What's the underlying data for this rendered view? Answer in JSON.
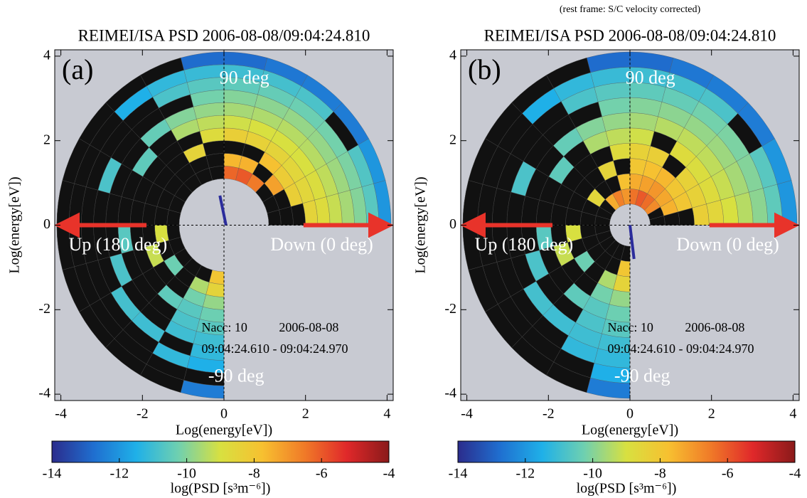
{
  "chart_data": [
    {
      "type": "polar-heatmap",
      "title": "REIMEI/ISA PSD 2006-08-08/09:04:24.810",
      "panel_label": "(a)",
      "xlabel": "Log(energy[eV])",
      "ylabel": "Log(energy[eV])",
      "xlim": [
        -4.15,
        4.15
      ],
      "ylim": [
        -4.15,
        4.15
      ],
      "xticks": [
        -4,
        -2,
        0,
        2,
        4
      ],
      "yticks": [
        -4,
        -2,
        0,
        2,
        4
      ],
      "angle_edges": [
        0,
        15,
        30,
        45,
        60,
        75,
        90,
        105,
        120,
        135,
        150,
        165,
        180,
        195,
        210,
        225,
        240,
        255,
        270
      ],
      "radius_edges": [
        1.1,
        1.4,
        1.7,
        2.0,
        2.3,
        2.6,
        2.9,
        3.2,
        3.5,
        3.8,
        4.1
      ],
      "values": [
        [
          null,
          null,
          null,
          -8.5,
          -8.8,
          -9.2,
          -9.6,
          -10,
          -10.6,
          -12
        ],
        [
          null,
          null,
          -8.3,
          -8.6,
          -8.9,
          -9.3,
          -9.7,
          -10.1,
          -10.7,
          -12
        ],
        [
          null,
          -7.2,
          -8.2,
          -8.6,
          -9,
          -9.4,
          -9.8,
          -10.2,
          null,
          -12.5
        ],
        [
          -6.5,
          null,
          -7.8,
          -8.5,
          -9,
          -9.4,
          -9.8,
          -10.3,
          -10.8,
          -12.5
        ],
        [
          -6,
          -7.5,
          null,
          -8.4,
          -9,
          -9.5,
          -9.9,
          -10.4,
          -10.9,
          -12.6
        ],
        [
          -6.2,
          -7.6,
          null,
          -8.3,
          -9.1,
          -9.6,
          -10,
          -10.5,
          -11,
          -12.8
        ],
        [
          null,
          null,
          null,
          -8.8,
          -9.3,
          -9.8,
          -10.2,
          -10.6,
          -11.1,
          -12.8
        ],
        [
          null,
          null,
          -8.5,
          null,
          -9.5,
          -10,
          null,
          -10.8,
          -11.2,
          null
        ],
        [
          null,
          null,
          null,
          null,
          null,
          -10.4,
          null,
          null,
          -11.5,
          null
        ],
        [
          null,
          null,
          null,
          null,
          -10.5,
          null,
          null,
          null,
          null,
          null
        ],
        [
          null,
          null,
          null,
          null,
          null,
          null,
          -10.8,
          null,
          null,
          null
        ],
        [
          null,
          null,
          null,
          null,
          null,
          null,
          null,
          null,
          null,
          null
        ],
        [
          null,
          -9,
          null,
          null,
          -10.6,
          null,
          null,
          null,
          null,
          null
        ],
        [
          null,
          null,
          -9.2,
          null,
          null,
          -10.8,
          null,
          null,
          null,
          null
        ],
        [
          null,
          -10.3,
          null,
          null,
          null,
          null,
          -10.9,
          null,
          null,
          null
        ],
        [
          null,
          null,
          null,
          -10.5,
          null,
          null,
          -11,
          null,
          null,
          null
        ],
        [
          null,
          -9.5,
          -10.2,
          -10.6,
          -10.8,
          -11,
          null,
          -11.2,
          null,
          null
        ],
        [
          -8,
          -8.5,
          -9.8,
          -10.3,
          -10.6,
          -11,
          -11.2,
          -11.5,
          null,
          -12.5
        ]
      ],
      "clim": [
        -14,
        -4
      ],
      "cticks": [
        -14,
        -12,
        -10,
        -8,
        -6,
        -4
      ],
      "colorbar_label": "log(PSD [s³m⁻⁶])",
      "colormap": [
        "#2b2c8c",
        "#1f6fd0",
        "#1fb0e8",
        "#6fd0b0",
        "#d8e040",
        "#f7c030",
        "#f07a28",
        "#e0282a",
        "#8a1a1a"
      ],
      "annotations": {
        "top": "90 deg",
        "bottom": "-90 deg",
        "left": "Up (180 deg)",
        "right": "Down (0 deg)",
        "nacc": "Nacc: 10",
        "date": "2006-08-08",
        "interval": "09:04:24.610 - 09:04:24.970"
      }
    },
    {
      "type": "polar-heatmap",
      "title": "REIMEI/ISA PSD 2006-08-08/09:04:24.810",
      "subtitle": "(rest frame: S/C velocity corrected)",
      "panel_label": "(b)",
      "xlabel": "Log(energy[eV])",
      "ylabel": "Log(energy[eV])",
      "xlim": [
        -4.15,
        4.15
      ],
      "ylim": [
        -4.15,
        4.15
      ],
      "xticks": [
        -4,
        -2,
        0,
        2,
        4
      ],
      "yticks": [
        -4,
        -2,
        0,
        2,
        4
      ],
      "angle_edges": [
        0,
        15,
        30,
        45,
        60,
        75,
        90,
        105,
        120,
        135,
        150,
        165,
        180,
        195,
        210,
        225,
        240,
        255,
        270
      ],
      "radius_edges": [
        0.5,
        0.86,
        1.22,
        1.58,
        1.94,
        2.3,
        2.66,
        3.02,
        3.38,
        3.74,
        4.1
      ],
      "values": [
        [
          null,
          null,
          null,
          -8.3,
          -8.6,
          -9,
          -9.4,
          -9.9,
          -10.5,
          -12
        ],
        [
          null,
          -7.5,
          -8,
          -8.4,
          -8.8,
          -9.2,
          -9.6,
          -10,
          -10.6,
          -12
        ],
        [
          -6.8,
          -7.3,
          -8,
          -8.4,
          -8.9,
          -9.3,
          -9.7,
          -10.1,
          null,
          -12.5
        ],
        [
          -6.3,
          -7,
          -7.6,
          null,
          -8.8,
          -9.3,
          -9.8,
          -10.2,
          -10.8,
          -12.5
        ],
        [
          -6,
          -7.2,
          -7.8,
          -8.3,
          null,
          -9.4,
          -9.9,
          -10.4,
          -10.9,
          -12.6
        ],
        [
          -6.4,
          -7.4,
          -8,
          -8.4,
          -9.1,
          -9.6,
          -10,
          -10.5,
          -11,
          -12.8
        ],
        [
          -7,
          -7.8,
          null,
          -8.8,
          -9.3,
          -9.8,
          -10.2,
          -10.6,
          -11.1,
          -12.8
        ],
        [
          -6.6,
          null,
          -8.5,
          null,
          -9.5,
          -10,
          null,
          -10.8,
          -11.2,
          null
        ],
        [
          -7.4,
          null,
          null,
          null,
          null,
          -10.4,
          null,
          null,
          -11.5,
          null
        ],
        [
          null,
          -8.6,
          null,
          null,
          -10.5,
          null,
          null,
          null,
          null,
          null
        ],
        [
          null,
          null,
          null,
          null,
          null,
          null,
          -10.8,
          null,
          null,
          null
        ],
        [
          null,
          null,
          null,
          null,
          null,
          null,
          null,
          null,
          null,
          null
        ],
        [
          null,
          null,
          -9,
          null,
          -10.6,
          null,
          null,
          null,
          null,
          null
        ],
        [
          null,
          null,
          null,
          -9.2,
          null,
          -10.8,
          null,
          null,
          null,
          null
        ],
        [
          null,
          null,
          -10.3,
          null,
          null,
          null,
          -10.9,
          null,
          null,
          null
        ],
        [
          null,
          null,
          null,
          null,
          -10.5,
          null,
          -11,
          null,
          null,
          null
        ],
        [
          null,
          null,
          -9.5,
          -10.2,
          -10.6,
          -10.8,
          -11,
          -11.2,
          null,
          null
        ],
        [
          null,
          -8,
          -8.5,
          -9.8,
          -10.3,
          -10.6,
          -11,
          -11.2,
          -11.5,
          -12.5
        ]
      ],
      "clim": [
        -14,
        -4
      ],
      "cticks": [
        -14,
        -12,
        -10,
        -8,
        -6,
        -4
      ],
      "colorbar_label": "log(PSD [s³m⁻⁶])",
      "colormap": [
        "#2b2c8c",
        "#1f6fd0",
        "#1fb0e8",
        "#6fd0b0",
        "#d8e040",
        "#f7c030",
        "#f07a28",
        "#e0282a",
        "#8a1a1a"
      ],
      "annotations": {
        "top": "90 deg",
        "bottom": "-90 deg",
        "left": "Up (180 deg)",
        "right": "Down (0 deg)",
        "nacc": "Nacc: 10",
        "date": "2006-08-08",
        "interval": "09:04:24.610 - 09:04:24.970"
      }
    }
  ]
}
